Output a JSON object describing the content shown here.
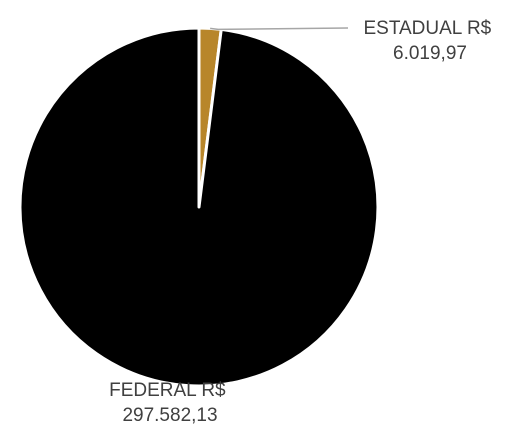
{
  "chart_data": {
    "type": "pie",
    "slices": [
      {
        "category": "ESTADUAL R$",
        "value": 6019.97,
        "value_label": "6.019,97",
        "color": "#b8862a"
      },
      {
        "category": "FEDERAL R$",
        "value": 297582.13,
        "value_label": "297.582,13",
        "color": "#000000"
      }
    ],
    "start_angle_deg": 0,
    "direction": "clockwise",
    "separator_color": "#ffffff",
    "leader_line_color": "#a6a6a6",
    "legend": "none"
  }
}
